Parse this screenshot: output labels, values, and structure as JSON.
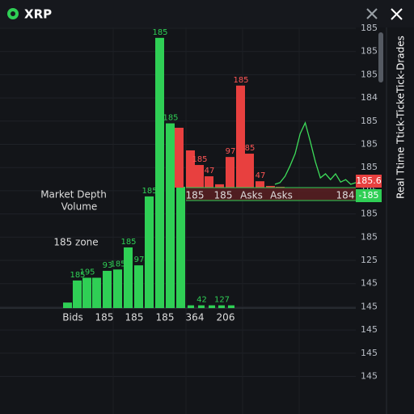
{
  "header": {
    "title": "XRP"
  },
  "side_title": "Real Ttime Ttick-TickeTick-Drades",
  "annotations": {
    "depth_line1": "Market Depth",
    "depth_line2": "Volume",
    "zone": "185 zone"
  },
  "price_axis": [
    "185",
    "185",
    "185",
    "184",
    "185",
    "185",
    "185",
    "185",
    "185",
    "185",
    "125",
    "145",
    "145",
    "145",
    "145",
    "145"
  ],
  "price_tags": {
    "ask": "185.6",
    "bid": "-185"
  },
  "bid_axis_labels": [
    "Bids",
    "185",
    "185",
    "185",
    "364",
    "206"
  ],
  "ask_axis_labels": [
    "185",
    "185",
    "Asks",
    "Asks",
    "184"
  ],
  "chart_data": {
    "type": "depth",
    "ylim": [
      0,
      100
    ],
    "bids": {
      "color": "#2fcf55",
      "values": [
        2,
        10,
        11,
        11,
        13.5,
        14,
        22,
        15.5,
        40.5,
        98,
        67,
        44,
        1,
        1,
        1,
        1,
        1
      ],
      "bar_labels": [
        null,
        "185",
        "195",
        null,
        "93",
        "185",
        "185",
        "97",
        "185",
        "185",
        "185",
        null,
        null,
        "42",
        null,
        "127",
        null
      ]
    },
    "asks": {
      "color": "#e8403f",
      "values": [
        21.7,
        13.5,
        8.2,
        4.1,
        1.2,
        11.1,
        37,
        12.3,
        2.3,
        0.6,
        0.3
      ],
      "bar_labels": [
        null,
        null,
        "185",
        "47",
        null,
        "97",
        "185",
        "85",
        "47",
        null,
        null
      ]
    },
    "ticks": {
      "color": "#3ddc5a",
      "values": [
        1.2,
        1.8,
        4.1,
        7.9,
        12.3,
        19.6,
        23.5,
        16.7,
        9.4,
        3.5,
        5,
        2.9,
        5,
        2,
        2.9,
        1.2,
        1.8
      ]
    }
  }
}
